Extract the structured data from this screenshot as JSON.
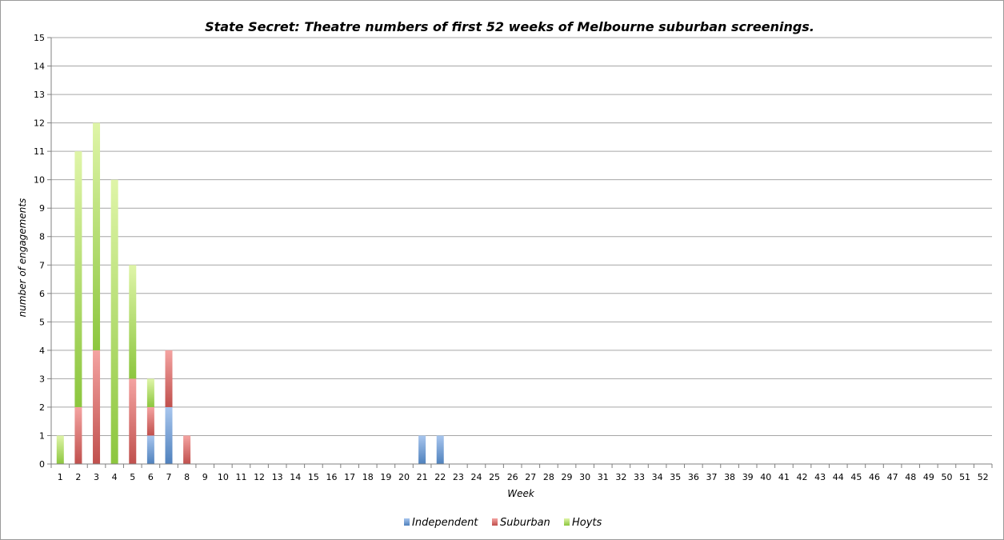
{
  "chart_data": {
    "type": "bar",
    "stacked": true,
    "title": "State Secret: Theatre numbers of first 52 weeks of Melbourne suburban screenings.",
    "xlabel": "Week",
    "ylabel": "number of engagements",
    "ylim": [
      0,
      15
    ],
    "yticks": [
      "0",
      "1",
      "2",
      "3",
      "4",
      "5",
      "6",
      "7",
      "8",
      "9",
      "10",
      "11",
      "12",
      "13",
      "14",
      "15"
    ],
    "grid": true,
    "legend_position": "bottom",
    "categories": [
      "1",
      "2",
      "3",
      "4",
      "5",
      "6",
      "7",
      "8",
      "9",
      "10",
      "11",
      "12",
      "13",
      "14",
      "15",
      "16",
      "17",
      "18",
      "19",
      "20",
      "21",
      "22",
      "23",
      "24",
      "25",
      "26",
      "27",
      "28",
      "29",
      "30",
      "31",
      "32",
      "33",
      "34",
      "35",
      "36",
      "37",
      "38",
      "39",
      "40",
      "41",
      "42",
      "43",
      "44",
      "45",
      "46",
      "47",
      "48",
      "49",
      "50",
      "51",
      "52"
    ],
    "series": [
      {
        "name": "Independent",
        "color": "#4f81bd",
        "light": "#a8c6ee",
        "values": [
          0,
          0,
          0,
          0,
          0,
          1,
          2,
          0,
          0,
          0,
          0,
          0,
          0,
          0,
          0,
          0,
          0,
          0,
          0,
          0,
          1,
          1,
          0,
          0,
          0,
          0,
          0,
          0,
          0,
          0,
          0,
          0,
          0,
          0,
          0,
          0,
          0,
          0,
          0,
          0,
          0,
          0,
          0,
          0,
          0,
          0,
          0,
          0,
          0,
          0,
          0,
          0
        ]
      },
      {
        "name": "Suburban",
        "color": "#c0504d",
        "light": "#f4a3a1",
        "values": [
          0,
          2,
          4,
          0,
          3,
          1,
          2,
          1,
          0,
          0,
          0,
          0,
          0,
          0,
          0,
          0,
          0,
          0,
          0,
          0,
          0,
          0,
          0,
          0,
          0,
          0,
          0,
          0,
          0,
          0,
          0,
          0,
          0,
          0,
          0,
          0,
          0,
          0,
          0,
          0,
          0,
          0,
          0,
          0,
          0,
          0,
          0,
          0,
          0,
          0,
          0,
          0
        ]
      },
      {
        "name": "Hoyts",
        "color": "#8cc63e",
        "light": "#dff5a8",
        "values": [
          1,
          9,
          8,
          10,
          4,
          1,
          0,
          0,
          0,
          0,
          0,
          0,
          0,
          0,
          0,
          0,
          0,
          0,
          0,
          0,
          0,
          0,
          0,
          0,
          0,
          0,
          0,
          0,
          0,
          0,
          0,
          0,
          0,
          0,
          0,
          0,
          0,
          0,
          0,
          0,
          0,
          0,
          0,
          0,
          0,
          0,
          0,
          0,
          0,
          0,
          0,
          0
        ]
      }
    ]
  }
}
